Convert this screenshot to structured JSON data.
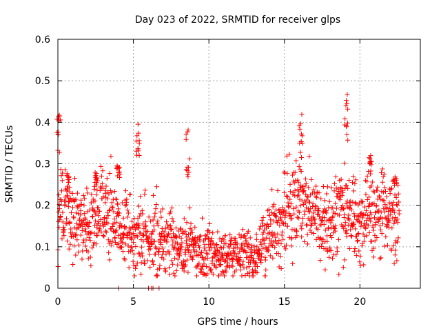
{
  "chart_data": {
    "type": "scatter",
    "title": "Day 023 of 2022, SRMTID for receiver glps",
    "xlabel": "GPS time / hours",
    "ylabel": "SRMTID / TECUs",
    "xlim": [
      0,
      24
    ],
    "ylim": [
      0,
      0.6
    ],
    "x_ticks": [
      0,
      5,
      10,
      15,
      20
    ],
    "x_tick_labels": [
      "0",
      "5",
      "10",
      "15",
      "20"
    ],
    "y_ticks": [
      0,
      0.1,
      0.2,
      0.3,
      0.4,
      0.5,
      0.6
    ],
    "y_tick_labels": [
      "0",
      "0.1",
      "0.2",
      "0.3",
      "0.4",
      "0.5",
      "0.6"
    ],
    "grid": true,
    "marker": "+",
    "marker_color": "#ff0000",
    "series": [
      {
        "name": "SRMTID",
        "profile": [
          [
            0.0,
            0.17,
            0.05
          ],
          [
            0.5,
            0.2,
            0.06
          ],
          [
            1.0,
            0.16,
            0.05
          ],
          [
            1.5,
            0.16,
            0.04
          ],
          [
            2.0,
            0.14,
            0.05
          ],
          [
            2.5,
            0.17,
            0.05
          ],
          [
            3.0,
            0.21,
            0.05
          ],
          [
            3.5,
            0.19,
            0.05
          ],
          [
            4.0,
            0.14,
            0.04
          ],
          [
            4.5,
            0.15,
            0.05
          ],
          [
            5.0,
            0.13,
            0.04
          ],
          [
            5.5,
            0.14,
            0.05
          ],
          [
            6.0,
            0.12,
            0.04
          ],
          [
            6.5,
            0.13,
            0.05
          ],
          [
            7.0,
            0.11,
            0.03
          ],
          [
            7.5,
            0.12,
            0.04
          ],
          [
            8.0,
            0.09,
            0.03
          ],
          [
            8.5,
            0.11,
            0.04
          ],
          [
            9.0,
            0.1,
            0.03
          ],
          [
            9.5,
            0.09,
            0.03
          ],
          [
            10.0,
            0.1,
            0.03
          ],
          [
            10.5,
            0.08,
            0.03
          ],
          [
            11.0,
            0.08,
            0.025
          ],
          [
            11.5,
            0.09,
            0.03
          ],
          [
            12.0,
            0.08,
            0.025
          ],
          [
            12.5,
            0.09,
            0.03
          ],
          [
            13.0,
            0.08,
            0.03
          ],
          [
            13.5,
            0.11,
            0.03
          ],
          [
            14.0,
            0.12,
            0.04
          ],
          [
            14.5,
            0.15,
            0.05
          ],
          [
            15.0,
            0.19,
            0.05
          ],
          [
            15.5,
            0.2,
            0.05
          ],
          [
            16.0,
            0.21,
            0.06
          ],
          [
            16.5,
            0.19,
            0.05
          ],
          [
            17.0,
            0.18,
            0.05
          ],
          [
            17.5,
            0.16,
            0.05
          ],
          [
            18.0,
            0.15,
            0.05
          ],
          [
            18.5,
            0.17,
            0.05
          ],
          [
            19.0,
            0.19,
            0.06
          ],
          [
            19.5,
            0.16,
            0.05
          ],
          [
            20.0,
            0.15,
            0.05
          ],
          [
            20.5,
            0.2,
            0.06
          ],
          [
            21.0,
            0.17,
            0.05
          ],
          [
            21.5,
            0.21,
            0.05
          ],
          [
            22.0,
            0.18,
            0.05
          ],
          [
            22.6,
            0.17,
            0.05
          ]
        ],
        "spikes": [
          [
            0.05,
            0.42,
            0.08
          ],
          [
            0.7,
            0.28,
            0.04
          ],
          [
            2.5,
            0.28,
            0.04
          ],
          [
            4.0,
            0.3,
            0.03
          ],
          [
            5.3,
            0.4,
            0.07
          ],
          [
            8.6,
            0.4,
            0.11
          ],
          [
            16.1,
            0.42,
            0.09
          ],
          [
            19.1,
            0.48,
            0.11
          ],
          [
            20.7,
            0.32,
            0.04
          ],
          [
            22.3,
            0.27,
            0.02
          ]
        ],
        "zero_values": [
          [
            4.0,
            0.0
          ],
          [
            6.0,
            0.0
          ],
          [
            6.2,
            0.0
          ],
          [
            6.3,
            0.0
          ],
          [
            6.7,
            0.0
          ]
        ]
      }
    ]
  }
}
